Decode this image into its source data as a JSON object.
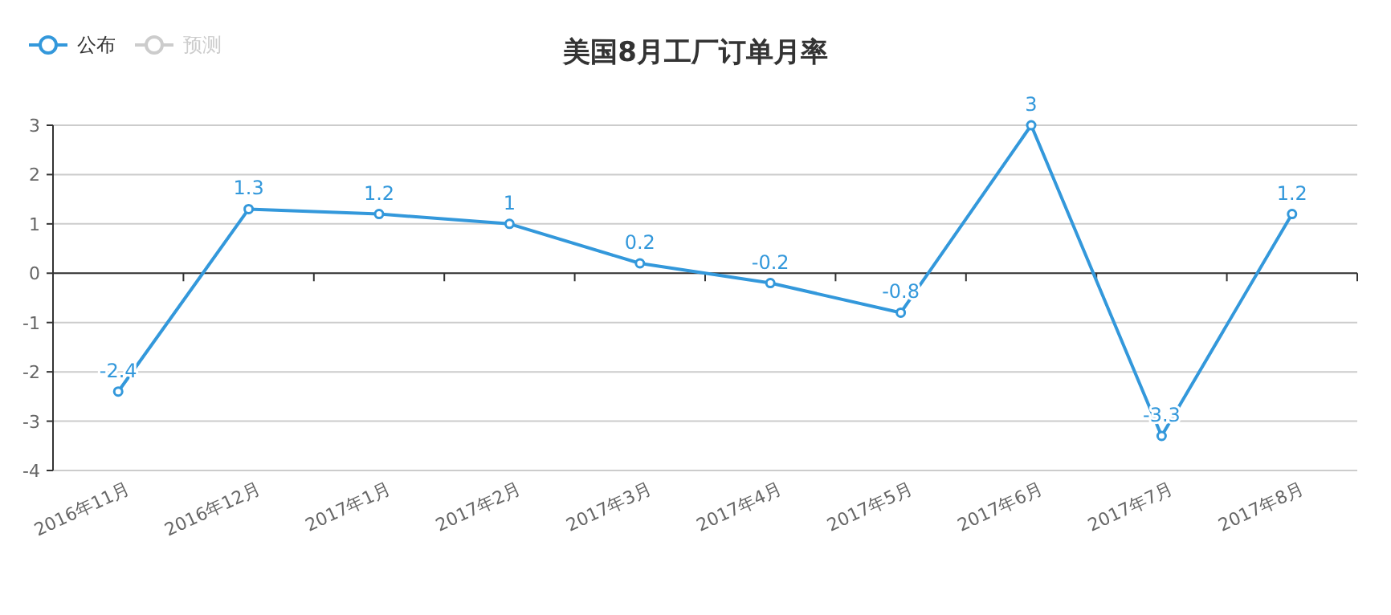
{
  "chart_data": {
    "type": "line",
    "title": "美国8月工厂订单月率",
    "categories": [
      "2016年11月",
      "2016年12月",
      "2017年1月",
      "2017年2月",
      "2017年3月",
      "2017年4月",
      "2017年5月",
      "2017年6月",
      "2017年7月",
      "2017年8月"
    ],
    "series": [
      {
        "name": "公布",
        "color": "#3398db",
        "values": [
          -2.4,
          1.3,
          1.2,
          1,
          0.2,
          -0.2,
          -0.8,
          3,
          -3.3,
          1.2
        ]
      },
      {
        "name": "预测",
        "color": "#cccccc",
        "values": [
          null,
          null,
          null,
          null,
          null,
          null,
          null,
          null,
          null,
          null
        ]
      }
    ],
    "ylim": [
      -4,
      3
    ],
    "yticks": [
      -4,
      -3,
      -2,
      -1,
      0,
      1,
      2,
      3
    ],
    "grid": "y",
    "legend": "top left",
    "marker": "circle",
    "line_style": "solid",
    "data_labels": true
  }
}
